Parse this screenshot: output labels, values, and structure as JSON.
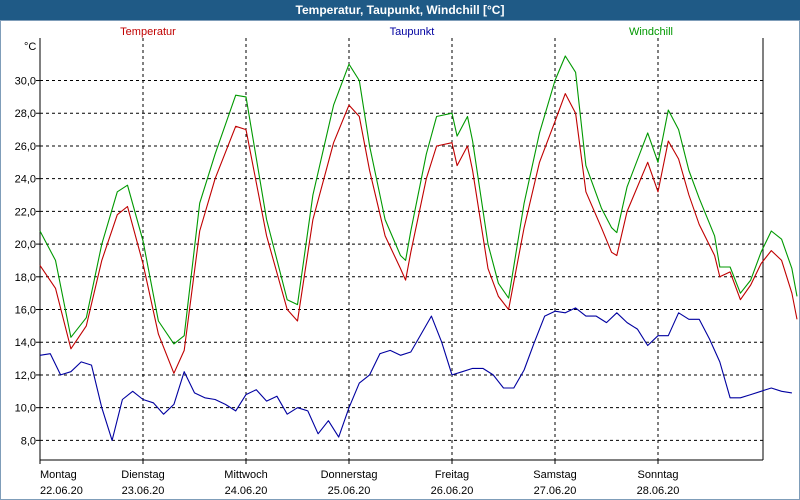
{
  "window": {
    "title": "Temperatur, Taupunkt, Windchill [°C]"
  },
  "chart_data": {
    "type": "line",
    "title": "Temperatur, Taupunkt, Windchill [°C]",
    "ylabel": "°C",
    "ylim": [
      6.8,
      32.6
    ],
    "yticks": [
      8,
      10,
      12,
      14,
      16,
      18,
      20,
      22,
      24,
      26,
      28,
      30
    ],
    "ytick_labels": [
      "8,0",
      "10,0",
      "12,0",
      "14,0",
      "16,0",
      "18,0",
      "20,0",
      "22,0",
      "24,0",
      "26,0",
      "28,0",
      "30,0"
    ],
    "xlim": [
      0,
      7
    ],
    "days": [
      {
        "weekday": "Montag",
        "date": "22.06.20"
      },
      {
        "weekday": "Dienstag",
        "date": "23.06.20"
      },
      {
        "weekday": "Mittwoch",
        "date": "24.06.20"
      },
      {
        "weekday": "Donnerstag",
        "date": "25.06.20"
      },
      {
        "weekday": "Freitag",
        "date": "26.06.20"
      },
      {
        "weekday": "Samstag",
        "date": "27.06.20"
      },
      {
        "weekday": "Sonntag",
        "date": "28.06.20"
      }
    ],
    "grid": true,
    "series": [
      {
        "name": "Temperatur",
        "color": "#c00000",
        "points": [
          [
            0.0,
            18.7
          ],
          [
            0.15,
            17.3
          ],
          [
            0.3,
            13.6
          ],
          [
            0.45,
            15.0
          ],
          [
            0.6,
            19.0
          ],
          [
            0.75,
            21.8
          ],
          [
            0.85,
            22.3
          ],
          [
            1.0,
            18.8
          ],
          [
            1.15,
            14.5
          ],
          [
            1.3,
            12.1
          ],
          [
            1.4,
            13.5
          ],
          [
            1.55,
            20.8
          ],
          [
            1.7,
            24.0
          ],
          [
            1.9,
            27.2
          ],
          [
            2.0,
            27.0
          ],
          [
            2.2,
            20.5
          ],
          [
            2.4,
            16.0
          ],
          [
            2.5,
            15.3
          ],
          [
            2.65,
            21.5
          ],
          [
            2.85,
            26.2
          ],
          [
            3.0,
            28.5
          ],
          [
            3.1,
            27.8
          ],
          [
            3.2,
            24.5
          ],
          [
            3.35,
            20.5
          ],
          [
            3.5,
            18.5
          ],
          [
            3.55,
            17.8
          ],
          [
            3.6,
            19.5
          ],
          [
            3.75,
            24.0
          ],
          [
            3.85,
            26.0
          ],
          [
            4.0,
            26.2
          ],
          [
            4.05,
            24.8
          ],
          [
            4.15,
            26.0
          ],
          [
            4.2,
            24.5
          ],
          [
            4.35,
            18.5
          ],
          [
            4.45,
            16.8
          ],
          [
            4.55,
            16.0
          ],
          [
            4.7,
            21.0
          ],
          [
            4.85,
            25.0
          ],
          [
            5.0,
            27.5
          ],
          [
            5.1,
            29.2
          ],
          [
            5.2,
            28.0
          ],
          [
            5.3,
            23.2
          ],
          [
            5.45,
            21.0
          ],
          [
            5.55,
            19.5
          ],
          [
            5.6,
            19.3
          ],
          [
            5.7,
            22.0
          ],
          [
            5.9,
            25.0
          ],
          [
            6.0,
            23.2
          ],
          [
            6.1,
            26.3
          ],
          [
            6.2,
            25.2
          ],
          [
            6.3,
            23.0
          ],
          [
            6.4,
            21.2
          ],
          [
            6.55,
            19.3
          ],
          [
            6.6,
            18.0
          ],
          [
            6.7,
            18.3
          ],
          [
            6.8,
            16.6
          ],
          [
            6.9,
            17.5
          ],
          [
            7.0,
            18.8
          ],
          [
            7.1,
            19.6
          ],
          [
            7.2,
            19.0
          ],
          [
            7.3,
            17.0
          ],
          [
            7.35,
            15.4
          ]
        ]
      },
      {
        "name": "Taupunkt",
        "color": "#0000a0",
        "points": [
          [
            0.0,
            13.2
          ],
          [
            0.1,
            13.3
          ],
          [
            0.2,
            12.0
          ],
          [
            0.3,
            12.2
          ],
          [
            0.4,
            12.8
          ],
          [
            0.5,
            12.6
          ],
          [
            0.6,
            10.0
          ],
          [
            0.7,
            8.0
          ],
          [
            0.8,
            10.5
          ],
          [
            0.9,
            11.0
          ],
          [
            1.0,
            10.5
          ],
          [
            1.1,
            10.3
          ],
          [
            1.2,
            9.6
          ],
          [
            1.3,
            10.2
          ],
          [
            1.4,
            12.2
          ],
          [
            1.5,
            10.9
          ],
          [
            1.6,
            10.6
          ],
          [
            1.7,
            10.5
          ],
          [
            1.8,
            10.2
          ],
          [
            1.9,
            9.8
          ],
          [
            2.0,
            10.8
          ],
          [
            2.1,
            11.1
          ],
          [
            2.2,
            10.4
          ],
          [
            2.3,
            10.7
          ],
          [
            2.4,
            9.6
          ],
          [
            2.5,
            10.0
          ],
          [
            2.6,
            9.8
          ],
          [
            2.7,
            8.4
          ],
          [
            2.8,
            9.2
          ],
          [
            2.9,
            8.2
          ],
          [
            3.0,
            10.0
          ],
          [
            3.1,
            11.5
          ],
          [
            3.2,
            12.0
          ],
          [
            3.3,
            13.3
          ],
          [
            3.4,
            13.5
          ],
          [
            3.5,
            13.2
          ],
          [
            3.6,
            13.4
          ],
          [
            3.7,
            14.5
          ],
          [
            3.8,
            15.6
          ],
          [
            3.9,
            14.0
          ],
          [
            4.0,
            12.0
          ],
          [
            4.1,
            12.2
          ],
          [
            4.2,
            12.4
          ],
          [
            4.3,
            12.4
          ],
          [
            4.4,
            12.0
          ],
          [
            4.5,
            11.2
          ],
          [
            4.6,
            11.2
          ],
          [
            4.7,
            12.3
          ],
          [
            4.8,
            14.0
          ],
          [
            4.9,
            15.6
          ],
          [
            5.0,
            15.9
          ],
          [
            5.1,
            15.8
          ],
          [
            5.2,
            16.1
          ],
          [
            5.3,
            15.6
          ],
          [
            5.4,
            15.6
          ],
          [
            5.5,
            15.2
          ],
          [
            5.6,
            15.8
          ],
          [
            5.7,
            15.2
          ],
          [
            5.8,
            14.8
          ],
          [
            5.9,
            13.8
          ],
          [
            6.0,
            14.4
          ],
          [
            6.1,
            14.4
          ],
          [
            6.2,
            15.8
          ],
          [
            6.3,
            15.4
          ],
          [
            6.4,
            15.4
          ],
          [
            6.5,
            14.2
          ],
          [
            6.6,
            12.8
          ],
          [
            6.7,
            10.6
          ],
          [
            6.8,
            10.6
          ],
          [
            6.9,
            10.8
          ],
          [
            7.0,
            11.0
          ],
          [
            7.1,
            11.2
          ],
          [
            7.2,
            11.0
          ],
          [
            7.3,
            10.9
          ]
        ]
      },
      {
        "name": "Windchill",
        "color": "#009900",
        "points": [
          [
            0.0,
            20.8
          ],
          [
            0.15,
            19.0
          ],
          [
            0.3,
            14.3
          ],
          [
            0.45,
            15.5
          ],
          [
            0.6,
            20.0
          ],
          [
            0.75,
            23.2
          ],
          [
            0.85,
            23.6
          ],
          [
            1.0,
            20.2
          ],
          [
            1.15,
            15.3
          ],
          [
            1.3,
            13.9
          ],
          [
            1.4,
            14.4
          ],
          [
            1.55,
            22.5
          ],
          [
            1.7,
            25.5
          ],
          [
            1.9,
            29.1
          ],
          [
            2.0,
            29.0
          ],
          [
            2.2,
            21.5
          ],
          [
            2.4,
            16.6
          ],
          [
            2.5,
            16.3
          ],
          [
            2.65,
            23.0
          ],
          [
            2.85,
            28.5
          ],
          [
            3.0,
            31.0
          ],
          [
            3.1,
            30.0
          ],
          [
            3.2,
            26.0
          ],
          [
            3.35,
            21.5
          ],
          [
            3.5,
            19.3
          ],
          [
            3.55,
            19.0
          ],
          [
            3.6,
            20.8
          ],
          [
            3.75,
            25.5
          ],
          [
            3.85,
            27.8
          ],
          [
            4.0,
            28.0
          ],
          [
            4.05,
            26.6
          ],
          [
            4.15,
            27.8
          ],
          [
            4.2,
            26.3
          ],
          [
            4.35,
            20.0
          ],
          [
            4.45,
            17.6
          ],
          [
            4.55,
            16.7
          ],
          [
            4.7,
            22.5
          ],
          [
            4.85,
            26.8
          ],
          [
            5.0,
            30.0
          ],
          [
            5.1,
            31.5
          ],
          [
            5.2,
            30.5
          ],
          [
            5.3,
            24.8
          ],
          [
            5.45,
            22.2
          ],
          [
            5.55,
            21.0
          ],
          [
            5.6,
            20.7
          ],
          [
            5.7,
            23.5
          ],
          [
            5.9,
            26.8
          ],
          [
            6.0,
            25.0
          ],
          [
            6.1,
            28.2
          ],
          [
            6.2,
            27.0
          ],
          [
            6.3,
            24.5
          ],
          [
            6.4,
            22.8
          ],
          [
            6.55,
            20.5
          ],
          [
            6.6,
            18.6
          ],
          [
            6.7,
            18.6
          ],
          [
            6.8,
            17.0
          ],
          [
            6.9,
            17.8
          ],
          [
            7.0,
            19.5
          ],
          [
            7.1,
            20.8
          ],
          [
            7.2,
            20.3
          ],
          [
            7.3,
            18.5
          ],
          [
            7.35,
            16.8
          ]
        ]
      }
    ]
  }
}
